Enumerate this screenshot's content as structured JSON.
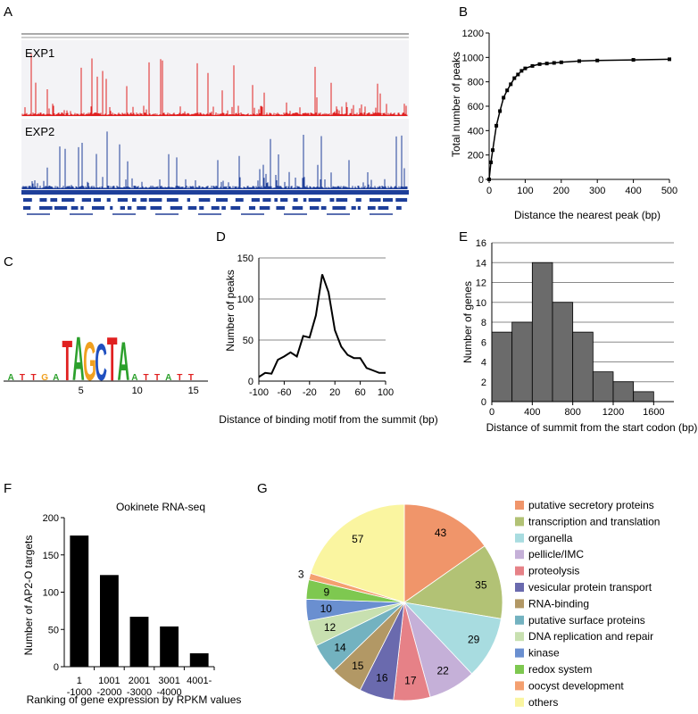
{
  "panel_letters": [
    "A",
    "B",
    "C",
    "D",
    "E",
    "F",
    "G"
  ],
  "colors": {
    "exp1": "#e02020",
    "exp2": "#1f3f99",
    "bar_e": "#6b6b6b",
    "bar_f": "#000000",
    "track_bg": "#f4f4f8",
    "gene_blue": "#1e3f9a"
  },
  "panel_a": {
    "tracks": [
      {
        "name": "EXP1",
        "color": "#e02020"
      },
      {
        "name": "EXP2",
        "color": "#1f3f99"
      }
    ]
  },
  "panel_c": {
    "type": "sequence-logo",
    "tick_labels": [
      "5",
      "10",
      "15"
    ],
    "core_letters": [
      {
        "letter": "T",
        "color": "#e02020"
      },
      {
        "letter": "A",
        "color": "#2ca02c"
      },
      {
        "letter": "G",
        "color": "#f0a020"
      },
      {
        "letter": "C",
        "color": "#2050c0"
      },
      {
        "letter": "T",
        "color": "#e02020"
      },
      {
        "letter": "A",
        "color": "#2ca02c"
      }
    ]
  },
  "chart_data": [
    {
      "panel": "B",
      "type": "line",
      "xlabel": "Distance the nearest peak (bp)",
      "ylabel": "Total number of peaks",
      "xlim": [
        0,
        500
      ],
      "ylim": [
        0,
        1200
      ],
      "xticks": [
        "0",
        "100",
        "200",
        "300",
        "400",
        "500"
      ],
      "yticks": [
        "0",
        "200",
        "400",
        "600",
        "800",
        "1000",
        "1200"
      ],
      "x": [
        0,
        5,
        10,
        20,
        30,
        40,
        50,
        60,
        70,
        80,
        90,
        100,
        120,
        140,
        160,
        180,
        200,
        250,
        300,
        400,
        500
      ],
      "y": [
        0,
        140,
        240,
        440,
        560,
        670,
        730,
        780,
        830,
        860,
        890,
        910,
        930,
        945,
        950,
        955,
        960,
        970,
        975,
        980,
        985
      ],
      "grid": false
    },
    {
      "panel": "D",
      "type": "line",
      "xlabel": "Distance of binding motif from the summit (bp)",
      "ylabel": "Number of peaks",
      "xlim": [
        -100,
        100
      ],
      "ylim": [
        0,
        150
      ],
      "xticks": [
        "-100",
        "-60",
        "-20",
        "20",
        "60",
        "100"
      ],
      "yticks": [
        "0",
        "50",
        "100",
        "150"
      ],
      "x": [
        -100,
        -90,
        -80,
        -70,
        -60,
        -50,
        -40,
        -30,
        -20,
        -10,
        0,
        10,
        20,
        30,
        40,
        50,
        60,
        70,
        80,
        90,
        100
      ],
      "y": [
        5,
        10,
        9,
        26,
        30,
        35,
        30,
        55,
        53,
        80,
        130,
        108,
        62,
        42,
        32,
        28,
        28,
        16,
        13,
        10,
        10
      ],
      "grid": true
    },
    {
      "panel": "E",
      "type": "bar",
      "xlabel": "Distance of summit from the start codon (bp)",
      "ylabel": "Number of genes",
      "xlim": [
        0,
        1800
      ],
      "ylim": [
        0,
        16
      ],
      "xticks": [
        "0",
        "400",
        "800",
        "1200",
        "1600"
      ],
      "yticks": [
        "0",
        "2",
        "4",
        "6",
        "8",
        "10",
        "12",
        "14",
        "16"
      ],
      "bins": [
        [
          0,
          200
        ],
        [
          200,
          400
        ],
        [
          400,
          600
        ],
        [
          600,
          800
        ],
        [
          800,
          1000
        ],
        [
          1000,
          1200
        ],
        [
          1200,
          1400
        ],
        [
          1400,
          1600
        ]
      ],
      "values": [
        7,
        8,
        14,
        10,
        7,
        3,
        2,
        1
      ],
      "grid": true
    },
    {
      "panel": "F",
      "type": "bar",
      "title": "Ookinete RNA-seq",
      "xlabel": "Ranking of gene expression by RPKM values",
      "ylabel": "Number of AP2-O targets",
      "ylim": [
        0,
        200
      ],
      "yticks": [
        "0",
        "50",
        "100",
        "150",
        "200"
      ],
      "categories": [
        [
          "1",
          "-1000"
        ],
        [
          "1001",
          "-2000"
        ],
        [
          "2001",
          "-3000"
        ],
        [
          "3001",
          "-4000"
        ],
        [
          "4001-",
          ""
        ]
      ],
      "values": [
        176,
        123,
        67,
        54,
        18
      ],
      "grid": false
    },
    {
      "panel": "G",
      "type": "pie",
      "legend_position": "right",
      "slices": [
        {
          "label": "putative secretory proteins",
          "value": 43,
          "color": "#f0956a"
        },
        {
          "label": "transcription and translation",
          "value": 35,
          "color": "#b2c275"
        },
        {
          "label": "organella",
          "value": 29,
          "color": "#a8dce0"
        },
        {
          "label": "pellicle/IMC",
          "value": 22,
          "color": "#c5b0d8"
        },
        {
          "label": "proteolysis",
          "value": 17,
          "color": "#e68187"
        },
        {
          "label": "vesicular protein transport",
          "value": 16,
          "color": "#6a6aae"
        },
        {
          "label": "RNA-binding",
          "value": 15,
          "color": "#b29865"
        },
        {
          "label": "putative surface proteins",
          "value": 14,
          "color": "#73b2c0"
        },
        {
          "label": "DNA replication and repair",
          "value": 12,
          "color": "#c8e0b0"
        },
        {
          "label": "kinase",
          "value": 10,
          "color": "#6a8fd0"
        },
        {
          "label": "redox system",
          "value": 9,
          "color": "#7ec850"
        },
        {
          "label": "oocyst development",
          "value": 3,
          "color": "#f4a070"
        },
        {
          "label": "others",
          "value": 57,
          "color": "#faf5a0"
        }
      ]
    }
  ]
}
